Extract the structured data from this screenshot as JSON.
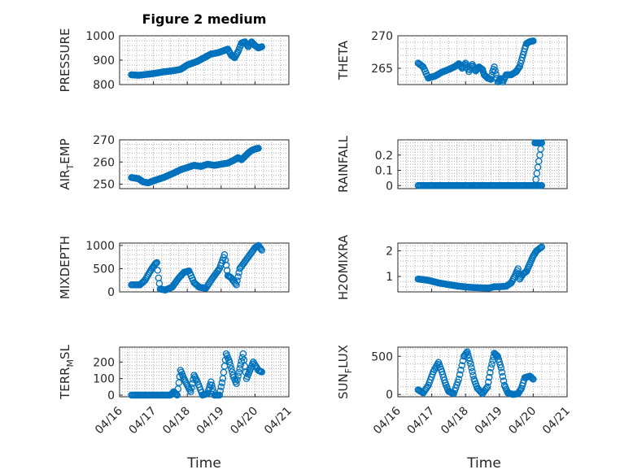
{
  "figure": {
    "title": "Figure 2 medium",
    "xlabel": "Time",
    "xtick_labels": [
      "04/16",
      "04/17",
      "04/18",
      "04/19",
      "04/20",
      "04/21"
    ],
    "marker_color": "#0072BD"
  },
  "chart_data": [
    {
      "type": "scatter",
      "ylabel": "PRESSURE",
      "ylim": [
        800,
        1000
      ],
      "yticks": [
        800,
        900,
        1000
      ],
      "grid": true,
      "xlim": [
        0,
        5
      ],
      "segments": [
        [
          0.35,
          840
        ],
        [
          0.55,
          838
        ],
        [
          0.7,
          840
        ],
        [
          1.0,
          845
        ],
        [
          1.3,
          852
        ],
        [
          1.6,
          857
        ],
        [
          1.8,
          862
        ],
        [
          2.0,
          880
        ],
        [
          2.3,
          895
        ],
        [
          2.5,
          910
        ],
        [
          2.7,
          925
        ],
        [
          2.9,
          930
        ],
        [
          3.1,
          940
        ],
        [
          3.2,
          945
        ],
        [
          3.3,
          920
        ],
        [
          3.4,
          910
        ],
        [
          3.5,
          935
        ],
        [
          3.6,
          970
        ],
        [
          3.7,
          975
        ],
        [
          3.8,
          955
        ],
        [
          3.9,
          975
        ],
        [
          4.0,
          960
        ],
        [
          4.1,
          950
        ],
        [
          4.2,
          955
        ]
      ]
    },
    {
      "type": "scatter",
      "ylabel": "THETA",
      "ylim": [
        262.5,
        270
      ],
      "yticks": [
        265,
        270
      ],
      "grid": true,
      "xlim": [
        0,
        5
      ],
      "segments": [
        [
          0.6,
          265.8
        ],
        [
          0.75,
          265.2
        ],
        [
          0.9,
          263.5
        ],
        [
          1.1,
          263.8
        ],
        [
          1.3,
          264.4
        ],
        [
          1.5,
          264.8
        ],
        [
          1.7,
          265.3
        ],
        [
          1.8,
          265.7
        ],
        [
          1.9,
          265.0
        ],
        [
          2.0,
          265.8
        ],
        [
          2.1,
          264.5
        ],
        [
          2.2,
          265.6
        ],
        [
          2.3,
          264.6
        ],
        [
          2.4,
          265.2
        ],
        [
          2.5,
          264.8
        ],
        [
          2.55,
          264.0
        ],
        [
          2.65,
          263.5
        ],
        [
          2.75,
          263.3
        ],
        [
          2.8,
          264.5
        ],
        [
          2.85,
          265.2
        ],
        [
          2.95,
          262.9
        ],
        [
          3.05,
          263.4
        ],
        [
          3.1,
          262.9
        ],
        [
          3.2,
          264.0
        ],
        [
          3.35,
          264.0
        ],
        [
          3.5,
          264.5
        ],
        [
          3.6,
          265.3
        ],
        [
          3.65,
          266.2
        ],
        [
          3.75,
          268.0
        ],
        [
          3.8,
          268.8
        ],
        [
          3.9,
          269.1
        ],
        [
          4.0,
          269.2
        ]
      ]
    },
    {
      "type": "scatter",
      "ylabel": "AIR_TEMP",
      "ylim": [
        248,
        270
      ],
      "yticks": [
        250,
        260,
        270
      ],
      "grid": true,
      "xlim": [
        0,
        5
      ],
      "segments": [
        [
          0.35,
          253
        ],
        [
          0.55,
          252.5
        ],
        [
          0.7,
          251
        ],
        [
          0.85,
          250.6
        ],
        [
          1.0,
          251.5
        ],
        [
          1.3,
          253
        ],
        [
          1.6,
          255
        ],
        [
          1.8,
          256.5
        ],
        [
          2.0,
          257.5
        ],
        [
          2.2,
          258.5
        ],
        [
          2.4,
          258
        ],
        [
          2.6,
          259
        ],
        [
          2.8,
          258.5
        ],
        [
          3.0,
          259
        ],
        [
          3.2,
          259.5
        ],
        [
          3.4,
          261
        ],
        [
          3.5,
          262
        ],
        [
          3.6,
          261
        ],
        [
          3.7,
          262.5
        ],
        [
          3.8,
          264
        ],
        [
          3.9,
          265.2
        ],
        [
          4.0,
          265.8
        ],
        [
          4.1,
          266.2
        ]
      ]
    },
    {
      "type": "scatter",
      "ylabel": "RAINFALL",
      "ylim": [
        -0.02,
        0.3
      ],
      "yticks": [
        0,
        0.1,
        0.2
      ],
      "grid": true,
      "xlim": [
        0,
        5
      ],
      "segments": [
        [
          0.6,
          0
        ],
        [
          4.05,
          0
        ],
        [
          4.05,
          0.28
        ],
        [
          4.25,
          0.28
        ],
        [
          4.05,
          0
        ],
        [
          4.25,
          0
        ]
      ]
    },
    {
      "type": "scatter",
      "ylabel": "MIXDEPTH",
      "ylim": [
        0,
        1050
      ],
      "yticks": [
        0,
        500,
        1000
      ],
      "grid": true,
      "xlim": [
        0,
        5
      ],
      "segments": [
        [
          0.35,
          150
        ],
        [
          0.6,
          150
        ],
        [
          0.75,
          250
        ],
        [
          0.95,
          500
        ],
        [
          1.05,
          600
        ],
        [
          1.1,
          630
        ],
        [
          1.15,
          300
        ],
        [
          1.2,
          60
        ],
        [
          1.35,
          40
        ],
        [
          1.55,
          100
        ],
        [
          1.75,
          300
        ],
        [
          1.9,
          420
        ],
        [
          2.05,
          450
        ],
        [
          2.2,
          200
        ],
        [
          2.35,
          100
        ],
        [
          2.55,
          80
        ],
        [
          2.75,
          300
        ],
        [
          2.95,
          500
        ],
        [
          3.1,
          800
        ],
        [
          3.2,
          350
        ],
        [
          3.3,
          300
        ],
        [
          3.45,
          150
        ],
        [
          3.55,
          500
        ],
        [
          3.7,
          650
        ],
        [
          3.85,
          800
        ],
        [
          4.0,
          950
        ],
        [
          4.1,
          1000
        ],
        [
          4.2,
          900
        ]
      ]
    },
    {
      "type": "scatter",
      "ylabel": "H2OMIXRA",
      "ylim": [
        0.4,
        2.3
      ],
      "yticks": [
        1,
        2
      ],
      "grid": true,
      "xlim": [
        0,
        5
      ],
      "segments": [
        [
          0.6,
          0.9
        ],
        [
          0.9,
          0.85
        ],
        [
          1.2,
          0.75
        ],
        [
          1.5,
          0.68
        ],
        [
          1.8,
          0.62
        ],
        [
          2.1,
          0.58
        ],
        [
          2.4,
          0.56
        ],
        [
          2.7,
          0.55
        ],
        [
          2.85,
          0.6
        ],
        [
          3.0,
          0.6
        ],
        [
          3.2,
          0.62
        ],
        [
          3.35,
          0.75
        ],
        [
          3.45,
          1.0
        ],
        [
          3.55,
          1.3
        ],
        [
          3.6,
          0.9
        ],
        [
          3.7,
          1.1
        ],
        [
          3.8,
          1.2
        ],
        [
          3.9,
          1.5
        ],
        [
          4.0,
          1.8
        ],
        [
          4.1,
          2.0
        ],
        [
          4.25,
          2.15
        ]
      ]
    },
    {
      "type": "scatter",
      "ylabel": "TERR_MSL",
      "ylim": [
        -10,
        290
      ],
      "yticks": [
        0,
        100,
        200
      ],
      "grid": true,
      "xlim": [
        0,
        5
      ],
      "segments": [
        [
          0.35,
          0
        ],
        [
          1.5,
          0
        ],
        [
          1.6,
          20
        ],
        [
          1.7,
          0
        ],
        [
          1.8,
          150
        ],
        [
          1.9,
          100
        ],
        [
          2.0,
          60
        ],
        [
          2.1,
          20
        ],
        [
          2.2,
          120
        ],
        [
          2.3,
          80
        ],
        [
          2.45,
          0
        ],
        [
          2.6,
          10
        ],
        [
          2.7,
          80
        ],
        [
          2.8,
          0
        ],
        [
          2.95,
          0
        ],
        [
          3.05,
          100
        ],
        [
          3.15,
          250
        ],
        [
          3.25,
          200
        ],
        [
          3.35,
          120
        ],
        [
          3.45,
          70
        ],
        [
          3.55,
          160
        ],
        [
          3.65,
          250
        ],
        [
          3.75,
          100
        ],
        [
          3.85,
          150
        ],
        [
          3.95,
          200
        ],
        [
          4.1,
          150
        ],
        [
          4.2,
          140
        ]
      ]
    },
    {
      "type": "scatter",
      "ylabel": "SUN_FLUX",
      "ylim": [
        -30,
        620
      ],
      "yticks": [
        0,
        500
      ],
      "grid": true,
      "xlim": [
        0,
        5
      ],
      "segments": [
        [
          0.6,
          60
        ],
        [
          0.75,
          20
        ],
        [
          0.9,
          120
        ],
        [
          1.05,
          300
        ],
        [
          1.2,
          420
        ],
        [
          1.3,
          300
        ],
        [
          1.4,
          150
        ],
        [
          1.5,
          40
        ],
        [
          1.65,
          10
        ],
        [
          1.8,
          200
        ],
        [
          1.95,
          500
        ],
        [
          2.05,
          560
        ],
        [
          2.15,
          400
        ],
        [
          2.25,
          200
        ],
        [
          2.35,
          80
        ],
        [
          2.5,
          10
        ],
        [
          2.65,
          100
        ],
        [
          2.75,
          350
        ],
        [
          2.85,
          540
        ],
        [
          2.95,
          500
        ],
        [
          3.05,
          350
        ],
        [
          3.15,
          120
        ],
        [
          3.25,
          20
        ],
        [
          3.4,
          0
        ],
        [
          3.55,
          10
        ],
        [
          3.65,
          80
        ],
        [
          3.75,
          220
        ],
        [
          3.9,
          240
        ],
        [
          4.0,
          200
        ]
      ]
    }
  ]
}
